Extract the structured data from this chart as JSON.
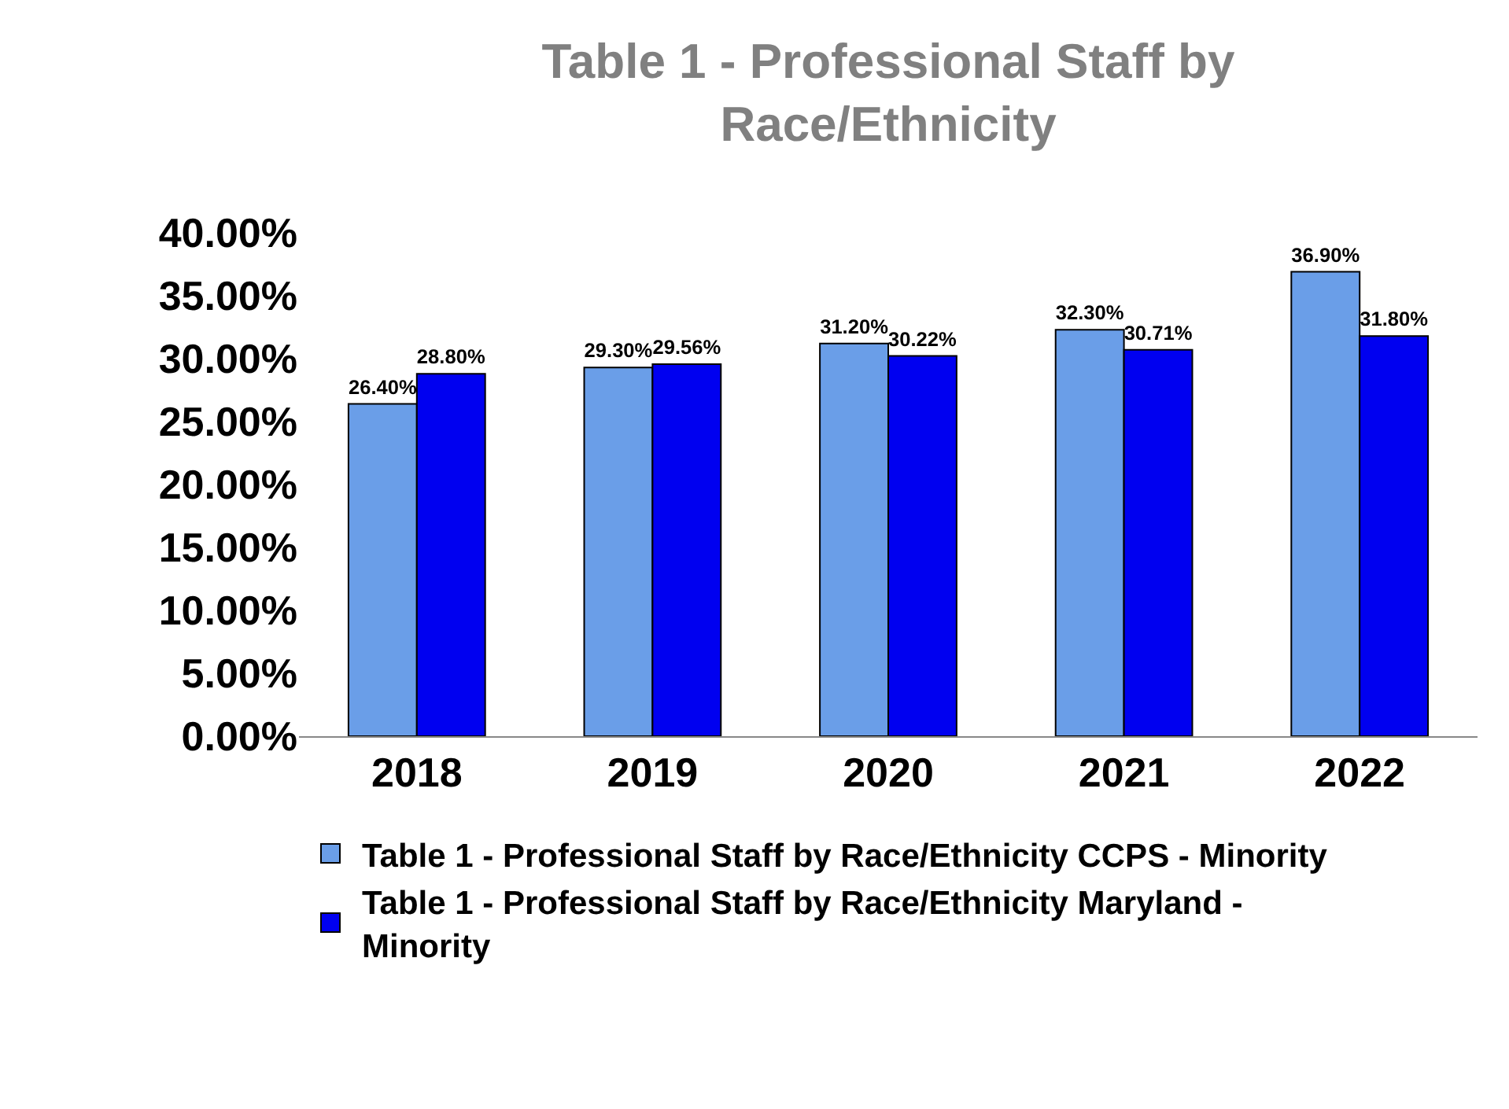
{
  "chart_data": {
    "type": "bar",
    "title": "Table 1 - Professional Staff by Race/Ethnicity",
    "categories": [
      "2018",
      "2019",
      "2020",
      "2021",
      "2022"
    ],
    "series": [
      {
        "name": "Table 1 - Professional Staff by Race/Ethnicity CCPS - Minority",
        "color": "#6a9ee8",
        "values": [
          26.4,
          29.3,
          31.2,
          32.3,
          36.9
        ],
        "value_labels": [
          "26.40%",
          "29.30%",
          "31.20%",
          "32.30%",
          "36.90%"
        ]
      },
      {
        "name": "Table 1 - Professional Staff by Race/Ethnicity Maryland - Minority",
        "color": "#0000f0",
        "values": [
          28.8,
          29.56,
          30.22,
          30.71,
          31.8
        ],
        "value_labels": [
          "28.80%",
          "29.56%",
          "30.22%",
          "30.71%",
          "31.80%"
        ]
      }
    ],
    "ylim": [
      0,
      40
    ],
    "yticks": [
      {
        "value": 0,
        "label": "0.00%"
      },
      {
        "value": 5,
        "label": "5.00%"
      },
      {
        "value": 10,
        "label": "10.00%"
      },
      {
        "value": 15,
        "label": "15.00%"
      },
      {
        "value": 20,
        "label": "20.00%"
      },
      {
        "value": 25,
        "label": "25.00%"
      },
      {
        "value": 30,
        "label": "30.00%"
      },
      {
        "value": 35,
        "label": "35.00%"
      },
      {
        "value": 40,
        "label": "40.00%"
      }
    ],
    "grid": false,
    "legend": "bottom"
  }
}
